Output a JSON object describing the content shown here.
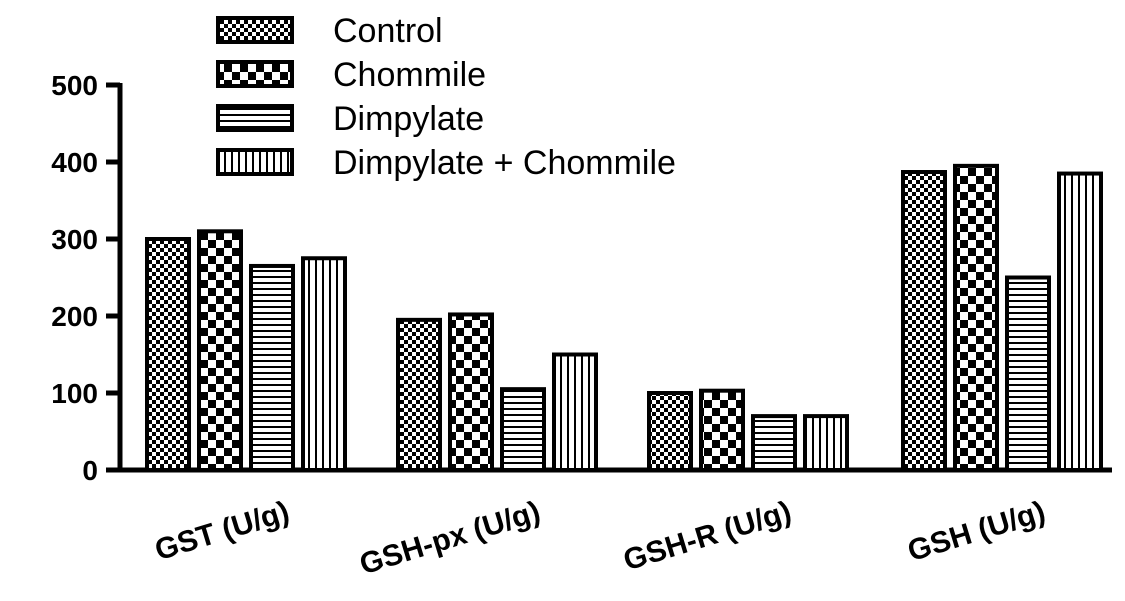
{
  "chart_data": {
    "type": "bar",
    "categories": [
      "GST (U/g)",
      "GSH-px (U/g)",
      "GSH-R (U/g)",
      "GSH (U/g)"
    ],
    "series": [
      {
        "name": "Control",
        "values": [
          300,
          195,
          100,
          387
        ]
      },
      {
        "name": "Chommile",
        "values": [
          310,
          202,
          103,
          395
        ]
      },
      {
        "name": "Dimpylate",
        "values": [
          265,
          105,
          70,
          250
        ]
      },
      {
        "name": "Dimpylate + Chommile",
        "values": [
          275,
          150,
          70,
          385
        ]
      }
    ],
    "yticks": [
      0,
      100,
      200,
      300,
      400,
      500
    ],
    "ylim": [
      0,
      500
    ],
    "legend_position": "top-left",
    "grid": false
  }
}
